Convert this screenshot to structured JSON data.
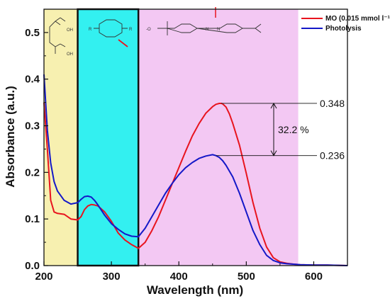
{
  "chart_data": {
    "type": "line",
    "title": "",
    "xlabel": "Wavelength (nm)",
    "ylabel": "Absorbance (a.u.)",
    "xlim": [
      200,
      650
    ],
    "ylim": [
      0.0,
      0.55
    ],
    "x_ticks": [
      "200",
      "300",
      "400",
      "500",
      "600"
    ],
    "y_ticks": [
      "0.0",
      "0.1",
      "0.2",
      "0.3",
      "0.4",
      "0.5"
    ],
    "grid": false,
    "legend_position": "top-right",
    "regions": [
      {
        "x_range": [
          200,
          250
        ],
        "color": "#f7f0b0"
      },
      {
        "x_range": [
          250,
          340
        ],
        "color": "#33f0f0"
      },
      {
        "x_range": [
          340,
          577
        ],
        "color": "#f3c8f3"
      }
    ],
    "series": [
      {
        "name": "MO (0.015 mmol l⁻¹)",
        "color": "#e8141e",
        "x": [
          200,
          205,
          210,
          215,
          220,
          230,
          240,
          250,
          255,
          260,
          265,
          270,
          275,
          280,
          290,
          300,
          310,
          320,
          330,
          340,
          350,
          360,
          370,
          380,
          390,
          400,
          410,
          420,
          430,
          440,
          450,
          455,
          460,
          463,
          465,
          470,
          475,
          480,
          490,
          500,
          510,
          520,
          530,
          540,
          550,
          560,
          570,
          580,
          600,
          620,
          650
        ],
        "y": [
          0.35,
          0.25,
          0.14,
          0.115,
          0.112,
          0.11,
          0.1,
          0.098,
          0.105,
          0.12,
          0.128,
          0.131,
          0.13,
          0.128,
          0.115,
          0.095,
          0.07,
          0.055,
          0.045,
          0.037,
          0.05,
          0.075,
          0.105,
          0.14,
          0.175,
          0.21,
          0.245,
          0.278,
          0.305,
          0.327,
          0.341,
          0.346,
          0.348,
          0.348,
          0.347,
          0.34,
          0.325,
          0.305,
          0.258,
          0.198,
          0.135,
          0.08,
          0.04,
          0.017,
          0.008,
          0.005,
          0.003,
          0.002,
          0.001,
          0.001,
          0.0
        ]
      },
      {
        "name": "Photolysis",
        "color": "#1418c8",
        "x": [
          200,
          205,
          210,
          215,
          220,
          230,
          240,
          250,
          255,
          260,
          265,
          270,
          275,
          280,
          290,
          300,
          310,
          320,
          330,
          340,
          350,
          360,
          370,
          380,
          390,
          400,
          410,
          420,
          430,
          440,
          450,
          455,
          460,
          465,
          470,
          480,
          490,
          500,
          510,
          520,
          530,
          540,
          550,
          560,
          570,
          580,
          600,
          620,
          650
        ],
        "y": [
          0.41,
          0.29,
          0.22,
          0.18,
          0.16,
          0.14,
          0.132,
          0.135,
          0.142,
          0.148,
          0.149,
          0.147,
          0.14,
          0.13,
          0.108,
          0.09,
          0.078,
          0.068,
          0.063,
          0.062,
          0.08,
          0.105,
          0.13,
          0.155,
          0.176,
          0.195,
          0.21,
          0.221,
          0.23,
          0.235,
          0.238,
          0.236,
          0.232,
          0.225,
          0.215,
          0.19,
          0.155,
          0.115,
          0.075,
          0.045,
          0.022,
          0.011,
          0.006,
          0.004,
          0.003,
          0.002,
          0.001,
          0.001,
          0.0
        ]
      }
    ],
    "annotations": [
      {
        "text": "0.348",
        "value": 0.348
      },
      {
        "text": "0.236",
        "value": 0.236
      },
      {
        "text": "32.2 %"
      }
    ],
    "structure_labels": {
      "oh1": "OH",
      "oh2": "OH",
      "r1": "R",
      "r2": "R",
      "so3": "-O",
      "n1": "N",
      "n2": "N"
    }
  }
}
